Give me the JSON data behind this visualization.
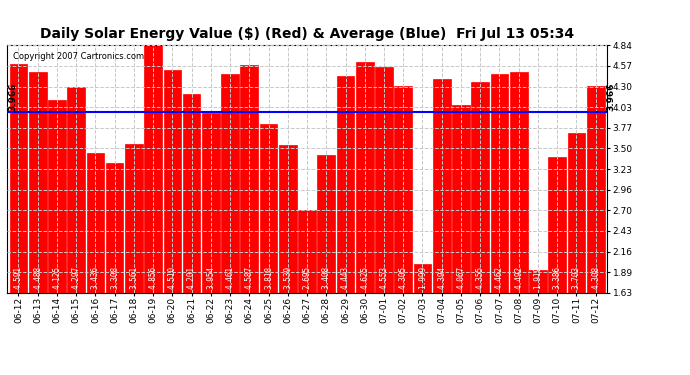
{
  "title": "Daily Solar Energy Value ($) (Red) & Average (Blue)  Fri Jul 13 05:34",
  "copyright": "Copyright 2007 Cartronics.com",
  "average": 3.966,
  "bar_color": "#FF0000",
  "avg_line_color": "#0000FF",
  "background_color": "#FFFFFF",
  "plot_bg_color": "#FFFFFF",
  "grid_color": "#C8C8C8",
  "categories": [
    "06-12",
    "06-13",
    "06-14",
    "06-15",
    "06-16",
    "06-17",
    "06-18",
    "06-19",
    "06-20",
    "06-21",
    "06-22",
    "06-23",
    "06-24",
    "06-25",
    "06-26",
    "06-27",
    "06-28",
    "06-29",
    "06-30",
    "07-01",
    "07-02",
    "07-03",
    "07-04",
    "07-05",
    "07-06",
    "07-07",
    "07-08",
    "07-09",
    "07-10",
    "07-11",
    "07-12"
  ],
  "values": [
    4.591,
    4.488,
    4.125,
    4.297,
    3.436,
    3.308,
    3.561,
    4.856,
    4.51,
    4.201,
    3.954,
    4.461,
    4.587,
    3.818,
    3.539,
    2.695,
    3.408,
    4.443,
    4.625,
    4.553,
    4.305,
    1.999,
    4.394,
    4.067,
    4.355,
    4.462,
    4.492,
    1.919,
    3.386,
    3.703,
    4.308
  ],
  "ylim_min": 1.63,
  "ylim_max": 4.84,
  "yticks": [
    1.63,
    1.89,
    2.16,
    2.43,
    2.7,
    2.96,
    3.23,
    3.5,
    3.77,
    4.03,
    4.3,
    4.57,
    4.84
  ],
  "title_fontsize": 10,
  "tick_fontsize": 6.5,
  "bar_label_fontsize": 5.5,
  "avg_label": "3.966",
  "avg_label_fontsize": 6.5,
  "copyright_fontsize": 6
}
